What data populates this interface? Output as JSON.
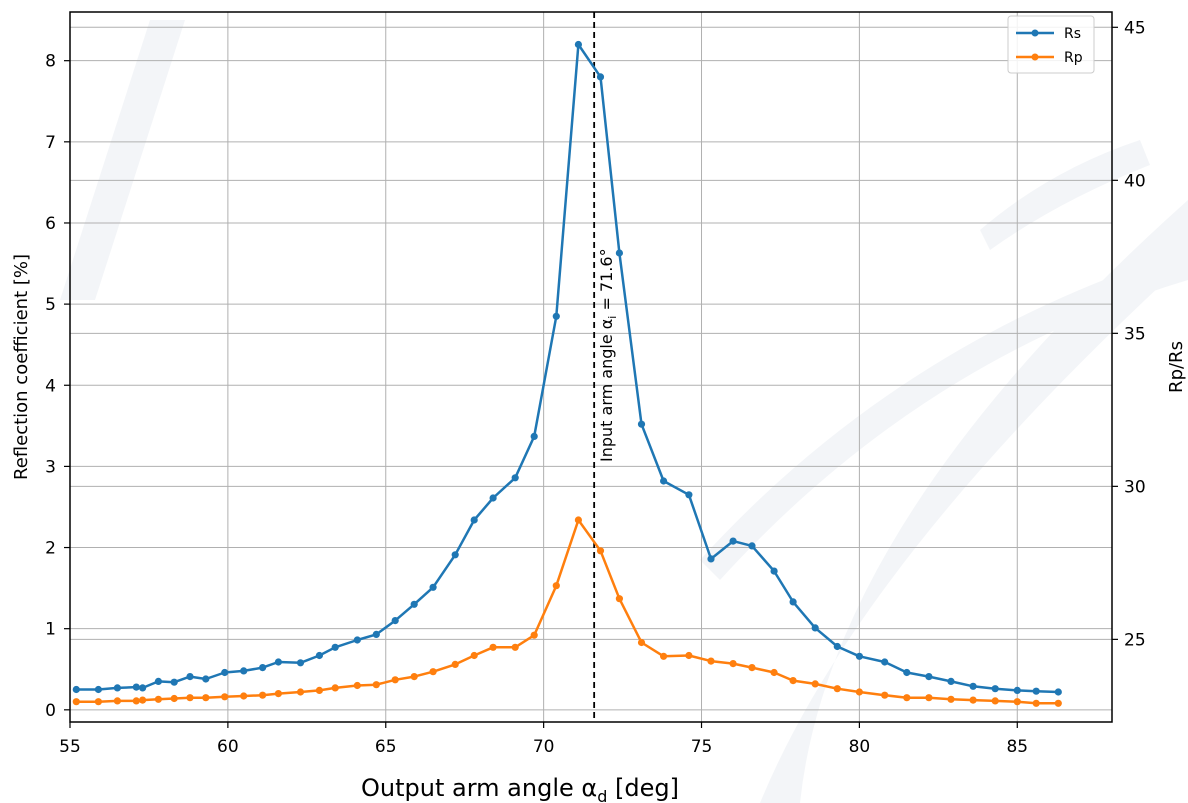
{
  "chart_data": {
    "type": "line",
    "title": "",
    "xlabel": "Output arm angle α",
    "xlabel_sub": "d",
    "xlabel_suffix": " [deg]",
    "ylabel": "Reflection coefficient [%]",
    "y2label": "Rp/Rs",
    "xlim": [
      55,
      88
    ],
    "ylim": [
      -0.15,
      8.6
    ],
    "y2lim": [
      22.3,
      45.5
    ],
    "xticks": [
      55,
      60,
      65,
      70,
      75,
      80,
      85
    ],
    "yticks": [
      0,
      1,
      2,
      3,
      4,
      5,
      6,
      7,
      8
    ],
    "y2ticks": [
      25,
      30,
      35,
      40,
      45
    ],
    "grid": true,
    "legend_position": "top-right",
    "colors": {
      "Rs": "#1f77b4",
      "Rp": "#ff7f0e"
    },
    "vline": {
      "x": 71.6,
      "label_prefix": "Input arm angle α",
      "label_sub": "i",
      "label_suffix": " = 71.6°"
    },
    "x": [
      55.2,
      55.9,
      56.5,
      57.1,
      57.3,
      57.8,
      58.3,
      58.8,
      59.3,
      59.9,
      60.5,
      61.1,
      61.6,
      62.3,
      62.9,
      63.4,
      64.1,
      64.7,
      65.3,
      65.9,
      66.5,
      67.2,
      67.8,
      68.4,
      69.1,
      69.7,
      70.4,
      71.1,
      71.8,
      72.4,
      73.1,
      73.8,
      74.6,
      75.3,
      76.0,
      76.6,
      77.3,
      77.9,
      78.6,
      79.3,
      80.0,
      80.8,
      81.5,
      82.2,
      82.9,
      83.6,
      84.3,
      85.0,
      85.6,
      86.3
    ],
    "series": [
      {
        "name": "Rs",
        "values": [
          0.25,
          0.25,
          0.27,
          0.28,
          0.27,
          0.35,
          0.34,
          0.41,
          0.38,
          0.46,
          0.48,
          0.52,
          0.59,
          0.58,
          0.67,
          0.77,
          0.86,
          0.93,
          1.1,
          1.3,
          1.51,
          1.91,
          2.34,
          2.61,
          2.86,
          3.37,
          4.85,
          8.2,
          7.8,
          5.63,
          3.52,
          2.82,
          2.65,
          1.86,
          2.08,
          2.02,
          1.71,
          1.33,
          1.01,
          0.78,
          0.66,
          0.59,
          0.46,
          0.41,
          0.35,
          0.29,
          0.26,
          0.24,
          0.23,
          0.22
        ]
      },
      {
        "name": "Rp",
        "values": [
          0.1,
          0.1,
          0.11,
          0.11,
          0.12,
          0.13,
          0.14,
          0.15,
          0.15,
          0.16,
          0.17,
          0.18,
          0.2,
          0.22,
          0.24,
          0.27,
          0.3,
          0.31,
          0.37,
          0.41,
          0.47,
          0.56,
          0.67,
          0.77,
          0.77,
          0.92,
          1.53,
          2.34,
          1.96,
          1.37,
          0.83,
          0.66,
          0.67,
          0.6,
          0.57,
          0.52,
          0.46,
          0.36,
          0.32,
          0.26,
          0.22,
          0.18,
          0.15,
          0.15,
          0.13,
          0.12,
          0.11,
          0.1,
          0.08,
          0.08
        ]
      }
    ]
  }
}
